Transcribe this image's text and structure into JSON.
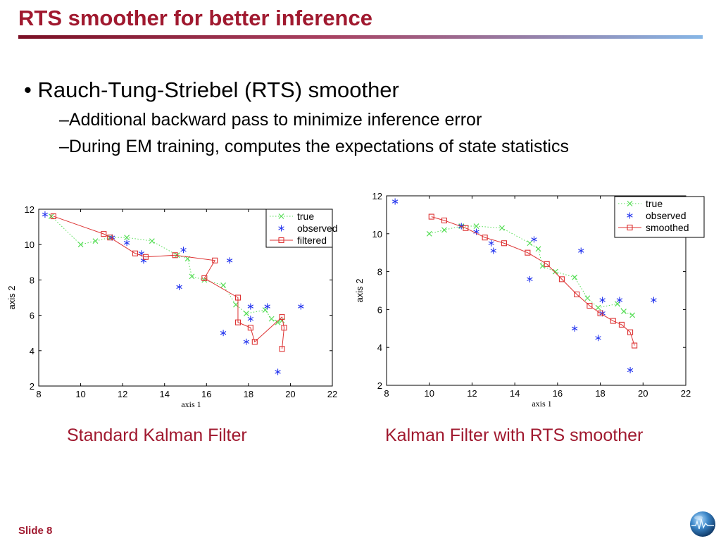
{
  "slide": {
    "title": "RTS smoother for better inference",
    "bullet": "• Rauch-Tung-Striebel (RTS) smoother",
    "subbullets": [
      "–Additional backward pass to minimize inference error",
      "–During EM training, computes the expectations of state statistics"
    ],
    "slide_label": "Slide 8",
    "title_color": "#a0192f"
  },
  "chart_data": [
    {
      "type": "line",
      "caption": "Standard Kalman Filter",
      "xlabel": "axis 1",
      "ylabel": "axis 2",
      "xlim": [
        8,
        22
      ],
      "ylim": [
        2,
        12
      ],
      "xticks": [
        8,
        10,
        12,
        14,
        16,
        18,
        20,
        22
      ],
      "yticks": [
        2,
        4,
        6,
        8,
        10,
        12
      ],
      "legend_position": "top-right",
      "grid": false,
      "series": [
        {
          "name": "true",
          "marker": "x",
          "line": "dotted",
          "color": "#55dd55",
          "x": [
            8.6,
            10.0,
            10.7,
            11.4,
            12.2,
            13.4,
            14.6,
            15.1,
            15.3,
            15.9,
            16.8,
            17.4,
            17.9,
            18.8,
            19.1,
            19.4,
            19.6
          ],
          "y": [
            11.6,
            10.0,
            10.2,
            10.4,
            10.4,
            10.2,
            9.4,
            9.2,
            8.2,
            8.0,
            7.7,
            6.6,
            6.1,
            6.3,
            5.8,
            5.6,
            5.7
          ]
        },
        {
          "name": "observed",
          "marker": "star",
          "line": "none",
          "color": "#2233ee",
          "x": [
            8.3,
            11.5,
            12.2,
            12.9,
            13.0,
            14.7,
            14.9,
            17.1,
            16.8,
            17.9,
            18.1,
            18.1,
            18.9,
            19.4,
            20.5
          ],
          "y": [
            11.7,
            10.4,
            10.1,
            9.5,
            9.1,
            7.6,
            9.7,
            9.1,
            5.0,
            4.5,
            5.8,
            6.5,
            6.5,
            2.8,
            6.5
          ]
        },
        {
          "name": "filtered",
          "marker": "square",
          "line": "solid",
          "color": "#dd3333",
          "x": [
            8.7,
            11.1,
            11.4,
            12.6,
            13.1,
            14.5,
            16.4,
            15.9,
            17.5,
            17.5,
            18.1,
            18.3,
            19.6,
            19.7,
            19.6
          ],
          "y": [
            11.6,
            10.6,
            10.4,
            9.5,
            9.3,
            9.4,
            9.1,
            8.1,
            7.0,
            5.6,
            5.3,
            4.5,
            5.9,
            5.3,
            4.1
          ]
        }
      ]
    },
    {
      "type": "line",
      "caption": "Kalman Filter with RTS smoother",
      "xlabel": "axis 1",
      "ylabel": "axis 2",
      "xlim": [
        8,
        22
      ],
      "ylim": [
        2,
        12
      ],
      "xticks": [
        8,
        10,
        12,
        14,
        16,
        18,
        20,
        22
      ],
      "yticks": [
        2,
        4,
        6,
        8,
        10,
        12
      ],
      "legend_position": "top-right",
      "grid": false,
      "series": [
        {
          "name": "true",
          "marker": "x",
          "line": "dotted",
          "color": "#55dd55",
          "x": [
            10.0,
            10.7,
            11.5,
            12.2,
            13.4,
            14.7,
            15.1,
            15.3,
            15.9,
            16.8,
            17.4,
            17.9,
            18.8,
            19.1,
            19.5
          ],
          "y": [
            10.0,
            10.2,
            10.4,
            10.4,
            10.3,
            9.5,
            9.2,
            8.3,
            8.0,
            7.7,
            6.6,
            6.1,
            6.3,
            5.9,
            5.7
          ]
        },
        {
          "name": "observed",
          "marker": "star",
          "line": "none",
          "color": "#2233ee",
          "x": [
            8.4,
            11.5,
            12.2,
            12.9,
            13.0,
            14.7,
            14.9,
            17.1,
            16.8,
            17.9,
            18.1,
            18.1,
            18.9,
            19.4,
            20.5
          ],
          "y": [
            11.7,
            10.4,
            10.1,
            9.5,
            9.1,
            7.6,
            9.7,
            9.1,
            5.0,
            4.5,
            5.8,
            6.5,
            6.5,
            2.8,
            6.5
          ]
        },
        {
          "name": "smoothed",
          "marker": "square",
          "line": "solid",
          "color": "#dd3333",
          "x": [
            10.1,
            10.7,
            11.7,
            12.6,
            13.5,
            14.6,
            15.5,
            16.2,
            16.9,
            17.5,
            18.0,
            18.6,
            19.0,
            19.4,
            19.6
          ],
          "y": [
            10.9,
            10.7,
            10.3,
            9.8,
            9.5,
            9.0,
            8.4,
            7.6,
            6.8,
            6.2,
            5.8,
            5.4,
            5.2,
            4.8,
            4.1
          ]
        }
      ]
    }
  ]
}
